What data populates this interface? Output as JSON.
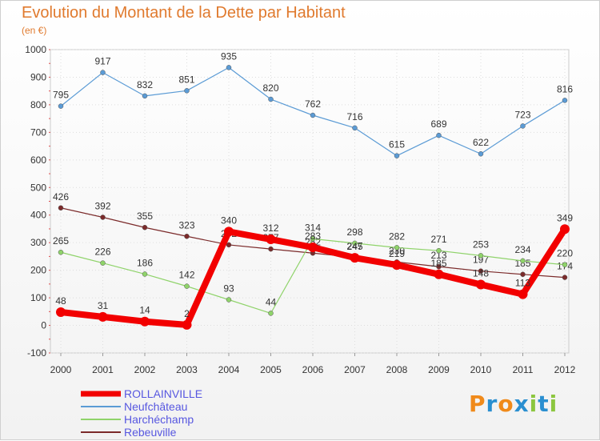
{
  "header": {
    "title": "Evolution du Montant de la Dette par Habitant",
    "subtitle": "(en €)"
  },
  "logo": {
    "letters": [
      "P",
      "r",
      "o",
      "x",
      "i",
      "t",
      "i"
    ],
    "colors": [
      "#f08a1a",
      "#2a8fd0",
      "#f08a1a",
      "#2a8fd0",
      "#8cc63f",
      "#2a8fd0",
      "#8cc63f"
    ]
  },
  "chart_data": {
    "type": "line",
    "title": "Evolution du Montant de la Dette par Habitant",
    "subtitle": "(en €)",
    "xlabel": "",
    "ylabel": "",
    "categories": [
      "2000",
      "2001",
      "2002",
      "2003",
      "2004",
      "2005",
      "2006",
      "2007",
      "2008",
      "2009",
      "2010",
      "2011",
      "2012"
    ],
    "ylim": [
      -100,
      1000
    ],
    "yticks": [
      -100,
      0,
      100,
      200,
      300,
      400,
      500,
      600,
      700,
      800,
      900,
      1000
    ],
    "grid": true,
    "legend_position": "bottom-left",
    "series": [
      {
        "name": "Neufchâteau",
        "color": "#5b9bd5",
        "width": 1.2,
        "values": [
          795,
          917,
          832,
          851,
          935,
          820,
          762,
          716,
          615,
          689,
          622,
          723,
          816
        ],
        "labels": [
          "795",
          "917",
          "832",
          "851",
          "935",
          "820",
          "762",
          "716",
          "615",
          "689",
          "622",
          "723",
          "816"
        ]
      },
      {
        "name": "Rebeuville",
        "color": "#7b2a2a",
        "width": 1.2,
        "values": [
          426,
          392,
          355,
          323,
          292,
          277,
          262,
          247,
          230,
          213,
          197,
          185,
          174
        ],
        "labels": [
          "426",
          "392",
          "355",
          "323",
          "292",
          "277",
          "262",
          "247",
          "230",
          "213",
          "197",
          "185",
          "174"
        ]
      },
      {
        "name": "Harchéchamp",
        "color": "#8fd36a",
        "width": 1.2,
        "values": [
          265,
          226,
          186,
          142,
          93,
          44,
          314,
          298,
          282,
          271,
          253,
          234,
          220
        ],
        "labels": [
          "265",
          "226",
          "186",
          "142",
          "93",
          "44",
          "314",
          "298",
          "282",
          "271",
          "253",
          "234",
          "220"
        ]
      },
      {
        "name": "ROLLAINVILLE",
        "color": "#f20000",
        "width": 8,
        "values": [
          48,
          31,
          14,
          2,
          340,
          312,
          283,
          245,
          219,
          185,
          148,
          113,
          349
        ],
        "labels": [
          "48",
          "31",
          "14",
          "2",
          "340",
          "312",
          "283",
          "245",
          "219",
          "185",
          "148",
          "113",
          "349"
        ]
      }
    ],
    "legend_order": [
      "ROLLAINVILLE",
      "Neufchâteau",
      "Harchéchamp",
      "Rebeuville"
    ]
  }
}
